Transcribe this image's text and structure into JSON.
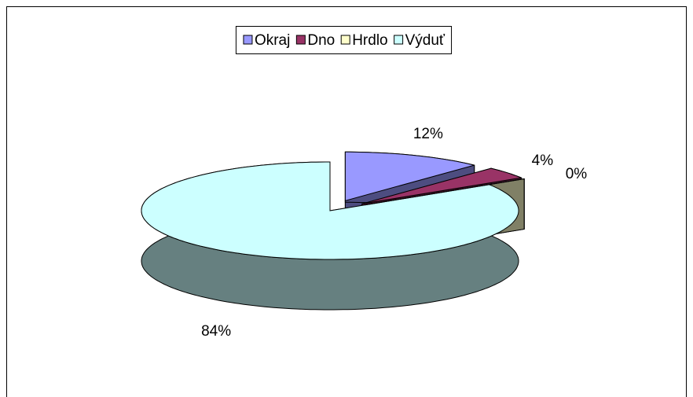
{
  "chart_data": {
    "type": "pie3d",
    "categories": [
      "Okraj",
      "Dno",
      "Hrdlo",
      "Výduť"
    ],
    "values": [
      12,
      4,
      0,
      84
    ],
    "value_labels": [
      "12%",
      "4%",
      "0%",
      "84%"
    ],
    "colors": [
      "#9999ff",
      "#993366",
      "#ffffcc",
      "#ccffff"
    ],
    "legend": "top"
  }
}
